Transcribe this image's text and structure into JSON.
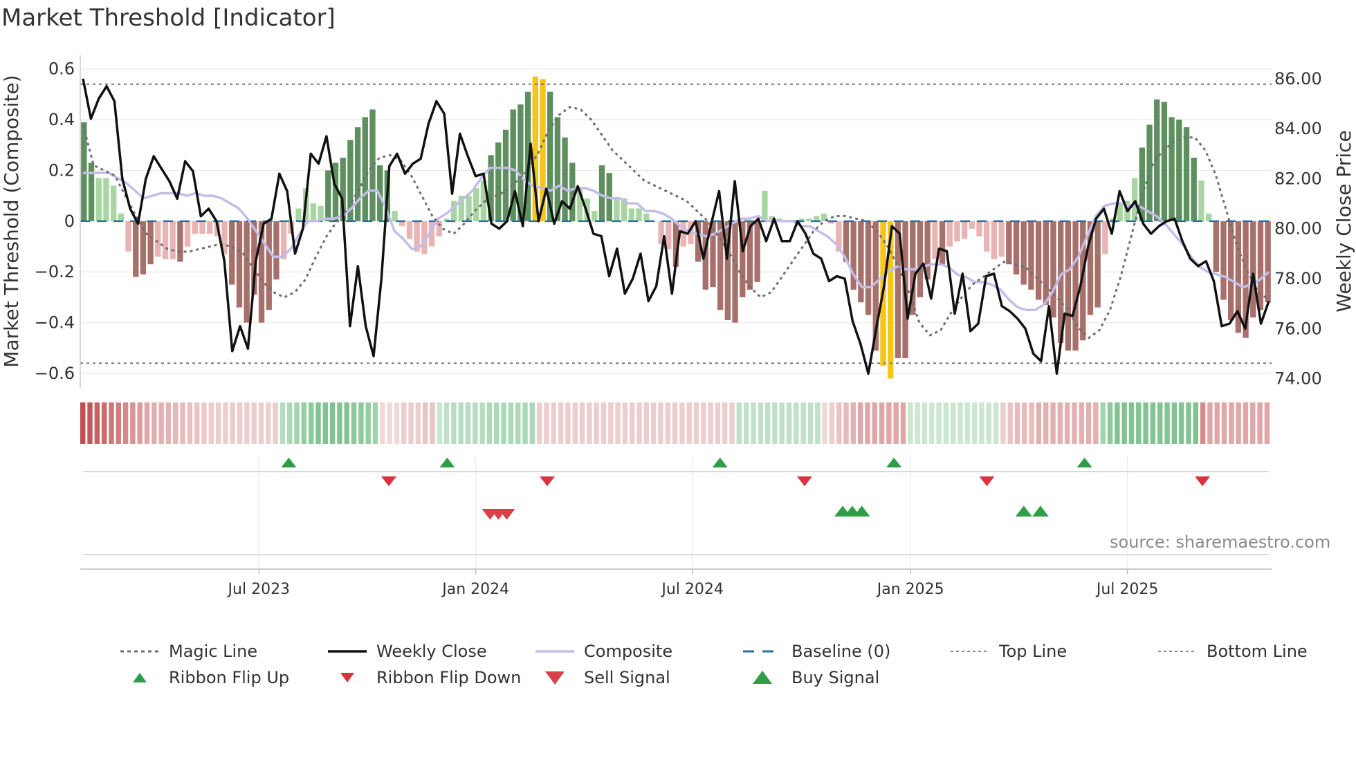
{
  "title": "Market Threshold [Indicator]",
  "source": "source: sharemaestro.com",
  "colors": {
    "green_dark": "#5e8f5e",
    "green_light": "#a8d5a2",
    "red_dark": "#a8706b",
    "red_light": "#e8b4b4",
    "yellow": "#f5c518",
    "close": "#111111",
    "composite": "#c4bde8",
    "magic": "#6f6f6f",
    "baseline": "#2a6f9a",
    "up": "#2e9d48",
    "down": "#d9343f",
    "sell": "#d9404a",
    "buy": "#2f9e46"
  },
  "chart_data": {
    "type": "bar+line",
    "title": "Market Threshold [Indicator]",
    "ylabel": "Market Threshold (Composite)",
    "y2label": "Weekly Close Price",
    "ylim": [
      -0.66,
      0.64
    ],
    "y2lim": [
      73.6,
      86.8
    ],
    "yticks": [
      "0.6",
      "0.4",
      "0.2",
      "0",
      "−0.2",
      "−0.4",
      "−0.6"
    ],
    "y2ticks": [
      "86.00",
      "84.00",
      "82.00",
      "80.00",
      "78.00",
      "76.00",
      "74.00"
    ],
    "xticks": [
      "Jul 2023",
      "Jan 2024",
      "Jul 2024",
      "Jan 2025",
      "Jul 2025"
    ],
    "top_line": 0.54,
    "bottom_line": -0.56,
    "baseline": 0,
    "series": [
      {
        "name": "Composite (bars)",
        "kind": "histogram",
        "values": [
          0.39,
          0.23,
          0.17,
          0.17,
          0.14,
          0.03,
          -0.12,
          -0.22,
          -0.21,
          -0.17,
          -0.14,
          -0.15,
          -0.15,
          -0.16,
          -0.1,
          -0.05,
          -0.05,
          -0.05,
          -0.06,
          -0.13,
          -0.25,
          -0.34,
          -0.4,
          -0.29,
          -0.4,
          -0.35,
          -0.23,
          -0.15,
          -0.05,
          0.05,
          0.13,
          0.07,
          0.06,
          0.2,
          0.23,
          0.25,
          0.32,
          0.37,
          0.41,
          0.44,
          0.22,
          0.2,
          0.04,
          -0.02,
          -0.07,
          -0.12,
          -0.13,
          -0.1,
          -0.06,
          0.01,
          0.08,
          0.1,
          0.1,
          0.13,
          0.16,
          0.26,
          0.31,
          0.36,
          0.44,
          0.46,
          0.51,
          0.57,
          0.56,
          0.51,
          0.41,
          0.33,
          0.23,
          0.13,
          0.09,
          0.04,
          0.22,
          0.19,
          0.09,
          0.09,
          0.05,
          0.05,
          0.03,
          0.0,
          -0.09,
          -0.11,
          -0.18,
          -0.1,
          -0.09,
          -0.16,
          -0.27,
          -0.26,
          -0.35,
          -0.39,
          -0.4,
          -0.3,
          -0.27,
          -0.24,
          0.12,
          0.02,
          0.01,
          0.0,
          0.0,
          0.01,
          0.01,
          0.02,
          0.03,
          -0.01,
          -0.12,
          -0.16,
          -0.27,
          -0.32,
          -0.37,
          -0.51,
          -0.57,
          -0.62,
          -0.54,
          -0.54,
          -0.37,
          -0.3,
          -0.23,
          -0.15,
          -0.17,
          -0.1,
          -0.08,
          -0.07,
          -0.03,
          -0.06,
          -0.12,
          -0.15,
          -0.14,
          -0.17,
          -0.21,
          -0.25,
          -0.27,
          -0.31,
          -0.33,
          -0.38,
          -0.48,
          -0.51,
          -0.51,
          -0.47,
          -0.37,
          -0.34,
          -0.13,
          0.01,
          0.07,
          0.08,
          0.17,
          0.29,
          0.38,
          0.48,
          0.47,
          0.41,
          0.4,
          0.37,
          0.25,
          0.16,
          0.03,
          -0.2,
          -0.31,
          -0.39,
          -0.44,
          -0.46,
          -0.38,
          -0.35,
          -0.32
        ]
      },
      {
        "name": "Weekly Close",
        "kind": "line",
        "axis": "right",
        "values": [
          86.0,
          84.4,
          85.2,
          85.7,
          85.1,
          82.0,
          80.8,
          80.2,
          82.0,
          82.9,
          82.4,
          81.9,
          81.2,
          82.7,
          82.3,
          80.5,
          80.8,
          80.3,
          78.7,
          75.1,
          76.1,
          75.2,
          78.7,
          80.2,
          80.4,
          82.2,
          81.5,
          79.0,
          80.0,
          83.0,
          82.6,
          83.7,
          81.8,
          81.2,
          76.1,
          78.5,
          76.1,
          74.9,
          78.0,
          82.5,
          83.0,
          82.2,
          82.6,
          82.8,
          84.2,
          85.1,
          84.6,
          81.4,
          83.8,
          82.9,
          82.1,
          82.2,
          80.2,
          80.0,
          80.3,
          81.5,
          80.1,
          83.4,
          80.3,
          81.6,
          80.2,
          81.1,
          80.8,
          81.7,
          80.8,
          79.8,
          79.7,
          78.1,
          79.2,
          77.4,
          78.0,
          79.0,
          77.1,
          77.7,
          79.7,
          77.4,
          79.9,
          79.8,
          80.3,
          78.8,
          80.2,
          81.5,
          78.8,
          81.9,
          79.1,
          80.1,
          80.4,
          79.5,
          80.4,
          79.5,
          79.5,
          80.3,
          79.8,
          79.0,
          78.8,
          77.9,
          78.1,
          78.0,
          76.3,
          75.4,
          74.2,
          76.0,
          77.7,
          80.1,
          79.8,
          76.4,
          78.2,
          78.6,
          77.2,
          79.2,
          79.1,
          76.6,
          78.2,
          75.9,
          76.2,
          78.1,
          78.2,
          76.9,
          76.7,
          76.4,
          76.0,
          75.0,
          74.7,
          76.9,
          74.2,
          76.6,
          76.5,
          77.7,
          79.3,
          80.4,
          80.8,
          79.8,
          81.5,
          80.7,
          81.1,
          80.2,
          79.8,
          80.1,
          80.3,
          80.4,
          79.5,
          78.8,
          78.5,
          78.7,
          77.9,
          76.1,
          76.2,
          76.7,
          76.0,
          78.2,
          76.2,
          77.1
        ]
      },
      {
        "name": "Composite",
        "kind": "line",
        "axis": "left",
        "values": [
          0.19,
          0.19,
          0.19,
          0.19,
          0.17,
          0.15,
          0.12,
          0.09,
          0.1,
          0.11,
          0.11,
          0.11,
          0.1,
          0.11,
          0.1,
          0.1,
          0.09,
          0.07,
          0.05,
          0.01,
          -0.04,
          -0.09,
          -0.14,
          -0.14,
          -0.11,
          -0.05,
          0.0,
          0.0,
          0.01,
          0.01,
          0.02,
          0.05,
          0.09,
          0.12,
          0.12,
          0.05,
          -0.04,
          -0.07,
          -0.11,
          -0.1,
          -0.05,
          0.01,
          0.03,
          0.06,
          0.09,
          0.12,
          0.17,
          0.21,
          0.21,
          0.21,
          0.2,
          0.16,
          0.14,
          0.13,
          0.12,
          0.14,
          0.12,
          0.13,
          0.13,
          0.12,
          0.1,
          0.09,
          0.09,
          0.07,
          0.07,
          0.04,
          0.04,
          0.03,
          0.01,
          -0.02,
          -0.04,
          -0.05,
          -0.06,
          -0.05,
          -0.03,
          -0.01,
          0.01,
          0.01,
          0.02,
          0.0,
          0.0,
          0.0,
          0.0,
          -0.02,
          -0.02,
          -0.04,
          -0.06,
          -0.09,
          -0.14,
          -0.21,
          -0.26,
          -0.26,
          -0.23,
          -0.2,
          -0.18,
          -0.19,
          -0.19,
          -0.18,
          -0.17,
          -0.17,
          -0.18,
          -0.21,
          -0.22,
          -0.24,
          -0.24,
          -0.25,
          -0.27,
          -0.31,
          -0.34,
          -0.35,
          -0.35,
          -0.33,
          -0.28,
          -0.21,
          -0.19,
          -0.14,
          -0.06,
          0.02,
          0.06,
          0.07,
          0.07,
          0.06,
          0.06,
          0.04,
          0.02,
          -0.01,
          -0.05,
          -0.09,
          -0.14,
          -0.18,
          -0.2,
          -0.21,
          -0.22,
          -0.24,
          -0.26,
          -0.25,
          -0.23,
          -0.2
        ]
      },
      {
        "name": "Magic Line",
        "kind": "line",
        "style": "dotted",
        "values": [
          0.38,
          0.22,
          0.2,
          0.18,
          0.1,
          0.02,
          -0.05,
          -0.08,
          -0.11,
          -0.12,
          -0.12,
          -0.11,
          -0.1,
          -0.09,
          -0.1,
          -0.12,
          -0.18,
          -0.24,
          -0.28,
          -0.3,
          -0.28,
          -0.23,
          -0.14,
          -0.06,
          0.0,
          0.05,
          0.12,
          0.2,
          0.25,
          0.26,
          0.24,
          0.18,
          0.1,
          0.02,
          -0.03,
          -0.05,
          -0.01,
          0.04,
          0.08,
          0.1,
          0.12,
          0.16,
          0.2,
          0.27,
          0.36,
          0.42,
          0.45,
          0.44,
          0.4,
          0.34,
          0.28,
          0.24,
          0.2,
          0.16,
          0.14,
          0.12,
          0.1,
          0.08,
          0.04,
          0.0,
          -0.06,
          -0.12,
          -0.2,
          -0.26,
          -0.3,
          -0.28,
          -0.22,
          -0.16,
          -0.1,
          -0.04,
          0.0,
          0.02,
          0.02,
          0.01,
          0.0,
          -0.04,
          -0.1,
          -0.18,
          -0.28,
          -0.4,
          -0.45,
          -0.43,
          -0.36,
          -0.3,
          -0.25,
          -0.22,
          -0.19,
          -0.16,
          -0.17,
          -0.18,
          -0.22,
          -0.26,
          -0.3,
          -0.35,
          -0.42,
          -0.46,
          -0.43,
          -0.35,
          -0.22,
          -0.06,
          0.1,
          0.22,
          0.28,
          0.31,
          0.33,
          0.33,
          0.28,
          0.18,
          0.04,
          -0.1,
          -0.2,
          -0.28,
          -0.31
        ]
      }
    ],
    "top_line_label": "Top Line",
    "bottom_line_label": "Bottom Line",
    "ribbon": [
      "red",
      "red",
      "red",
      "red",
      "red",
      "red",
      "red",
      "red",
      "red",
      "red",
      "red",
      "red",
      "red",
      "red",
      "red",
      "red",
      "red",
      "red",
      "red",
      "red",
      "red",
      "red",
      "red",
      "red",
      "red",
      "red",
      "red",
      "red",
      "green",
      "green",
      "green",
      "green",
      "green",
      "green",
      "green",
      "green",
      "green",
      "green",
      "green",
      "green",
      "green",
      "green",
      "red",
      "red",
      "red",
      "red",
      "red",
      "red",
      "red",
      "red",
      "green",
      "green",
      "green",
      "green",
      "green",
      "green",
      "green",
      "green",
      "green",
      "green",
      "green",
      "green",
      "green",
      "green",
      "red",
      "red",
      "red",
      "red",
      "red",
      "red",
      "red",
      "red",
      "red",
      "red",
      "red",
      "red",
      "red",
      "red",
      "red",
      "red",
      "red",
      "red",
      "red",
      "red",
      "red",
      "red",
      "red",
      "red",
      "red",
      "red",
      "red",
      "red",
      "green",
      "green",
      "green",
      "green",
      "green",
      "green",
      "green",
      "green",
      "green",
      "green",
      "green",
      "green",
      "red",
      "red",
      "red",
      "red",
      "red",
      "red",
      "red",
      "red",
      "red",
      "red",
      "red",
      "red",
      "green",
      "green",
      "green",
      "green",
      "green",
      "green",
      "green",
      "green",
      "green",
      "green",
      "green",
      "green",
      "green",
      "red",
      "red",
      "red",
      "red",
      "red",
      "red",
      "red",
      "red",
      "red",
      "red",
      "red",
      "red",
      "red",
      "red",
      "green",
      "green",
      "green",
      "green",
      "green",
      "green",
      "green",
      "green",
      "green",
      "green",
      "green",
      "green",
      "green",
      "green",
      "red",
      "red",
      "red",
      "red",
      "red",
      "red",
      "red",
      "red",
      "red",
      "red"
    ],
    "ribbon_strength": [
      0.9,
      0.85,
      0.8,
      0.75,
      0.7,
      0.65,
      0.6,
      0.55,
      0.5,
      0.45,
      0.42,
      0.4,
      0.38,
      0.36,
      0.34,
      0.32,
      0.3,
      0.28,
      0.26,
      0.25,
      0.25,
      0.25,
      0.25,
      0.25,
      0.25,
      0.25,
      0.25,
      0.25,
      0.35,
      0.4,
      0.45,
      0.5,
      0.55,
      0.6,
      0.6,
      0.6,
      0.6,
      0.6,
      0.55,
      0.55,
      0.5,
      0.45,
      0.2,
      0.2,
      0.2,
      0.25,
      0.25,
      0.25,
      0.3,
      0.3,
      0.25,
      0.3,
      0.35,
      0.35,
      0.35,
      0.35,
      0.35,
      0.4,
      0.4,
      0.4,
      0.4,
      0.4,
      0.4,
      0.4,
      0.25,
      0.25,
      0.25,
      0.25,
      0.25,
      0.25,
      0.25,
      0.25,
      0.25,
      0.25,
      0.25,
      0.25,
      0.25,
      0.25,
      0.25,
      0.25,
      0.25,
      0.25,
      0.25,
      0.25,
      0.25,
      0.25,
      0.25,
      0.25,
      0.25,
      0.25,
      0.25,
      0.25,
      0.3,
      0.3,
      0.3,
      0.3,
      0.3,
      0.3,
      0.3,
      0.3,
      0.3,
      0.3,
      0.3,
      0.3,
      0.2,
      0.25,
      0.3,
      0.35,
      0.4,
      0.45,
      0.45,
      0.45,
      0.45,
      0.45,
      0.45,
      0.45,
      0.25,
      0.25,
      0.25,
      0.25,
      0.25,
      0.25,
      0.25,
      0.25,
      0.25,
      0.25,
      0.25,
      0.25,
      0.25,
      0.25,
      0.3,
      0.35,
      0.35,
      0.35,
      0.4,
      0.4,
      0.4,
      0.4,
      0.4,
      0.4,
      0.4,
      0.4,
      0.4,
      0.45,
      0.55,
      0.6,
      0.6,
      0.6,
      0.6,
      0.6,
      0.6,
      0.6,
      0.6,
      0.6,
      0.6,
      0.6,
      0.6,
      0.6,
      0.45,
      0.45,
      0.45,
      0.45,
      0.45,
      0.45,
      0.45,
      0.45,
      0.45,
      0.45
    ],
    "ribbon_flip_up": [
      0.175,
      0.308,
      0.537,
      0.683,
      0.843
    ],
    "ribbon_flip_down": [
      0.259,
      0.392,
      0.608,
      0.761,
      0.942
    ],
    "sell_signal": [
      0.344,
      0.351,
      0.358
    ],
    "buy_signal": [
      0.64,
      0.648,
      0.656,
      0.792,
      0.806
    ]
  },
  "legend": [
    {
      "key": "magic",
      "label": "Magic Line"
    },
    {
      "key": "close",
      "label": "Weekly Close"
    },
    {
      "key": "composite",
      "label": "Composite"
    },
    {
      "key": "baseline",
      "label": "Baseline (0)"
    },
    {
      "key": "top",
      "label": "Top Line"
    },
    {
      "key": "bottom",
      "label": "Bottom Line"
    },
    {
      "key": "flip-up",
      "label": "Ribbon Flip Up"
    },
    {
      "key": "flip-down",
      "label": "Ribbon Flip Down"
    },
    {
      "key": "sell",
      "label": "Sell Signal"
    },
    {
      "key": "buy",
      "label": "Buy Signal"
    }
  ]
}
